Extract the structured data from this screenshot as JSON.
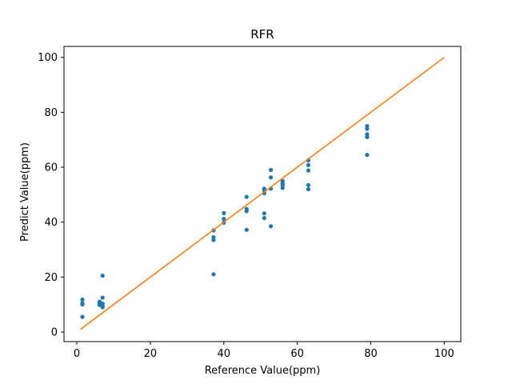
{
  "chart_data": {
    "type": "scatter",
    "title": "RFR",
    "xlabel": "Reference Value(ppm)",
    "ylabel": "Predict Value(ppm)",
    "xlim": [
      -3.5,
      104.5
    ],
    "ylim": [
      -3.5,
      104
    ],
    "xticks": [
      0,
      20,
      40,
      60,
      80,
      100
    ],
    "yticks": [
      0,
      20,
      40,
      60,
      80,
      100
    ],
    "grid": false,
    "series": [
      {
        "kind": "scatter",
        "color": "#1f77b4",
        "points": [
          {
            "x": 1.5,
            "y": 11.8
          },
          {
            "x": 1.5,
            "y": 10.5
          },
          {
            "x": 1.5,
            "y": 10.0
          },
          {
            "x": 1.5,
            "y": 5.5
          },
          {
            "x": 6.2,
            "y": 11.0
          },
          {
            "x": 6.2,
            "y": 10.2
          },
          {
            "x": 6.2,
            "y": 9.8
          },
          {
            "x": 7.0,
            "y": 20.5
          },
          {
            "x": 7.0,
            "y": 12.5
          },
          {
            "x": 7.0,
            "y": 10.3
          },
          {
            "x": 7.0,
            "y": 9.5
          },
          {
            "x": 7.0,
            "y": 9.0
          },
          {
            "x": 37.2,
            "y": 37.0
          },
          {
            "x": 37.2,
            "y": 34.5
          },
          {
            "x": 37.2,
            "y": 33.5
          },
          {
            "x": 37.2,
            "y": 21.0
          },
          {
            "x": 40.0,
            "y": 43.3
          },
          {
            "x": 40.0,
            "y": 41.2
          },
          {
            "x": 40.0,
            "y": 39.8
          },
          {
            "x": 46.2,
            "y": 49.2
          },
          {
            "x": 46.2,
            "y": 44.8
          },
          {
            "x": 46.2,
            "y": 44.0
          },
          {
            "x": 46.2,
            "y": 37.2
          },
          {
            "x": 51.0,
            "y": 52.2
          },
          {
            "x": 51.0,
            "y": 51.5
          },
          {
            "x": 51.0,
            "y": 50.5
          },
          {
            "x": 51.0,
            "y": 43.2
          },
          {
            "x": 51.0,
            "y": 41.5
          },
          {
            "x": 52.8,
            "y": 59.0
          },
          {
            "x": 52.8,
            "y": 56.3
          },
          {
            "x": 52.8,
            "y": 52.2
          },
          {
            "x": 52.8,
            "y": 38.5
          },
          {
            "x": 56.0,
            "y": 55.0
          },
          {
            "x": 56.0,
            "y": 54.2
          },
          {
            "x": 56.0,
            "y": 53.5
          },
          {
            "x": 56.0,
            "y": 52.5
          },
          {
            "x": 63.0,
            "y": 62.5
          },
          {
            "x": 63.0,
            "y": 60.8
          },
          {
            "x": 63.0,
            "y": 58.8
          },
          {
            "x": 63.0,
            "y": 53.5
          },
          {
            "x": 63.0,
            "y": 52.0
          },
          {
            "x": 79.0,
            "y": 75.0
          },
          {
            "x": 79.0,
            "y": 74.0
          },
          {
            "x": 79.0,
            "y": 72.0
          },
          {
            "x": 79.0,
            "y": 71.0
          },
          {
            "x": 79.0,
            "y": 64.5
          }
        ]
      },
      {
        "kind": "line",
        "color": "#ff7f0e",
        "x": [
          1,
          100
        ],
        "y": [
          1,
          100
        ]
      }
    ]
  }
}
